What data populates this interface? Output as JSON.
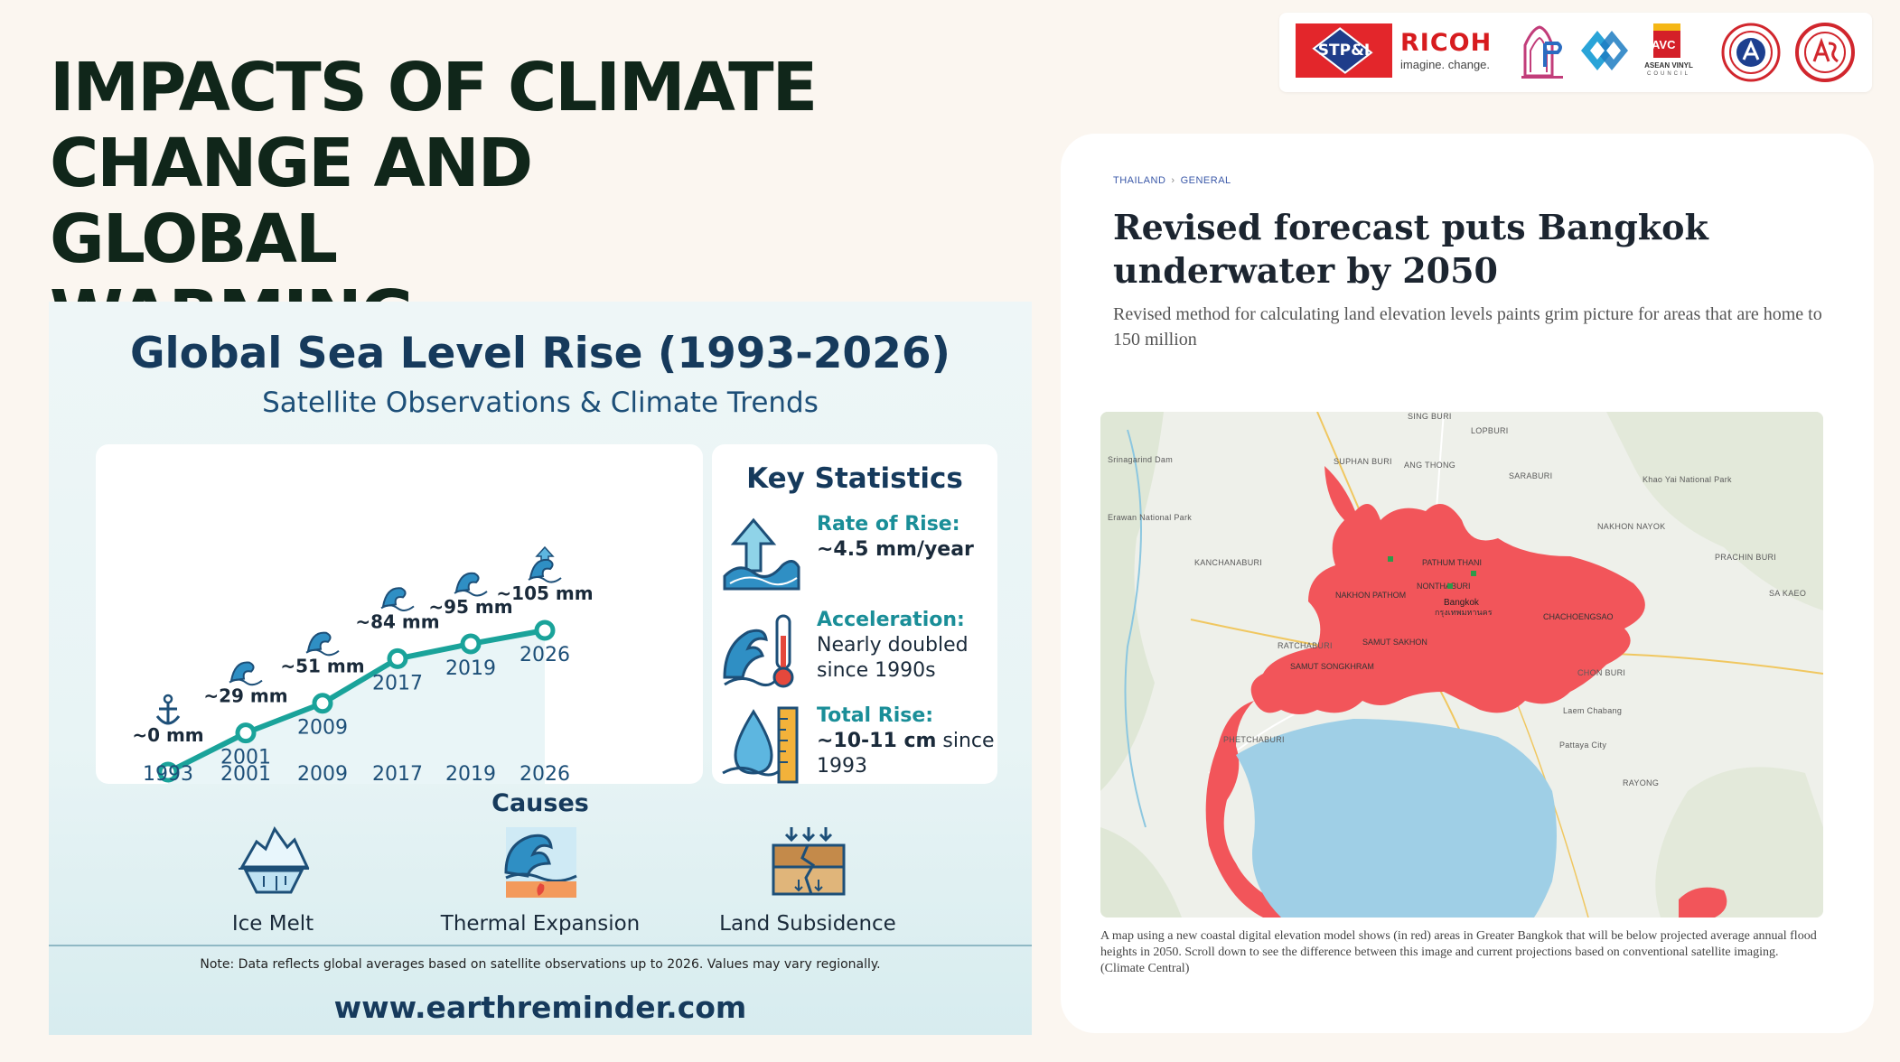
{
  "slide": {
    "title_line1": "IMPACTS OF CLIMATE",
    "title_line2": "CHANGE AND GLOBAL",
    "title_line3": "WARMING"
  },
  "logos": [
    {
      "name": "stpi-logo",
      "text": "STP&I"
    },
    {
      "name": "ricoh-logo",
      "text": "RICOH",
      "tagline": "imagine. change."
    },
    {
      "name": "association-logo-1",
      "text": ""
    },
    {
      "name": "association-logo-2",
      "text": ""
    },
    {
      "name": "avc-logo",
      "text": "AVC",
      "line1": "ASEAN VINYL",
      "line2": "COUNCIL"
    },
    {
      "name": "seal-logo-1",
      "text": ""
    },
    {
      "name": "seal-logo-2",
      "text": ""
    }
  ],
  "infographic": {
    "title": "Global Sea Level Rise (1993-2026)",
    "subtitle": "Satellite Observations & Climate Trends",
    "key_stats_title": "Key Statistics",
    "stats": [
      {
        "key": "Rate of Rise:",
        "line1": "~4.5 mm/year",
        "line2": ""
      },
      {
        "key": "Acceleration:",
        "line1": "Nearly doubled",
        "line2": "since 1990s"
      },
      {
        "key": "Total Rise:",
        "line1_bold": "~10-11 cm",
        "line1_rest": " since",
        "line2": "1993"
      }
    ],
    "causes_title": "Causes",
    "causes": [
      "Ice Melt",
      "Thermal Expansion",
      "Land Subsidence"
    ],
    "note": "Note: Data reflects global averages based on satellite observations up to 2026. Values may vary regionally.",
    "website": "www.earthreminder.com"
  },
  "chart_data": {
    "type": "line",
    "categories": [
      "1993",
      "2001",
      "2009",
      "2017",
      "2019",
      "2026"
    ],
    "values": [
      0,
      29,
      51,
      84,
      95,
      105
    ],
    "point_labels": [
      "~0 mm",
      "~29 mm",
      "~51 mm",
      "~84 mm",
      "~95 mm",
      "~105 mm"
    ],
    "title": "Global Sea Level Rise (1993-2026)",
    "xlabel": "",
    "ylabel": "",
    "grid": false,
    "line_color": "#1aa39a"
  },
  "article": {
    "crumb_1": "THAILAND",
    "crumb_sep": "›",
    "crumb_2": "GENERAL",
    "headline_line1": "Revised forecast puts Bangkok",
    "headline_line2": "underwater by 2050",
    "dek": "Revised method for calculating land elevation levels paints grim picture for areas that are home to 150 million",
    "caption": "A map using a new coastal digital elevation model shows (in red) areas in Greater Bangkok that will be below projected average annual flood heights in 2050. Scroll down to see the difference between this image and current projections based on conventional satellite imaging. (Climate Central)",
    "map_labels": {
      "sing_buri": "SING BURI",
      "lop_buri": "LOPBURI",
      "saraburi": "SARABURI",
      "suphan_buri": "SUPHAN BURI",
      "ang_thong": "ANG THONG",
      "kanchanaburi": "KANCHANABURI",
      "nakhon_nayok": "NAKHON NAYOK",
      "prachin_buri": "PRACHIN BURI",
      "pathum_thani": "PATHUM THANI",
      "nonthaburi": "NONTHABURI",
      "nakhon_pathom": "NAKHON PATHOM",
      "bangkok": "Bangkok",
      "bangkok_th": "กรุงเทพมหานคร",
      "chachoengsao": "CHACHOENGSAO",
      "sa_kaeo": "SA KAEO",
      "ratchaburi": "RATCHABURI",
      "samut_sakhon": "SAMUT SAKHON",
      "samut_songkhram": "SAMUT SONGKHRAM",
      "chon_buri": "CHON BURI",
      "phetchaburi": "PHETCHABURI",
      "laem_chabang": "Laem Chabang",
      "pattaya": "Pattaya City",
      "rayong": "RAYONG",
      "khao_yai": "Khao Yai National Park",
      "erawan": "Erawan National Park",
      "srinagarind": "Srinagarind Dam"
    }
  },
  "colors": {
    "title": "#10261a",
    "flood_red": "#f2555a",
    "sea": "#9fcfe6",
    "teal": "#1aa39a",
    "navy": "#163a5c"
  }
}
